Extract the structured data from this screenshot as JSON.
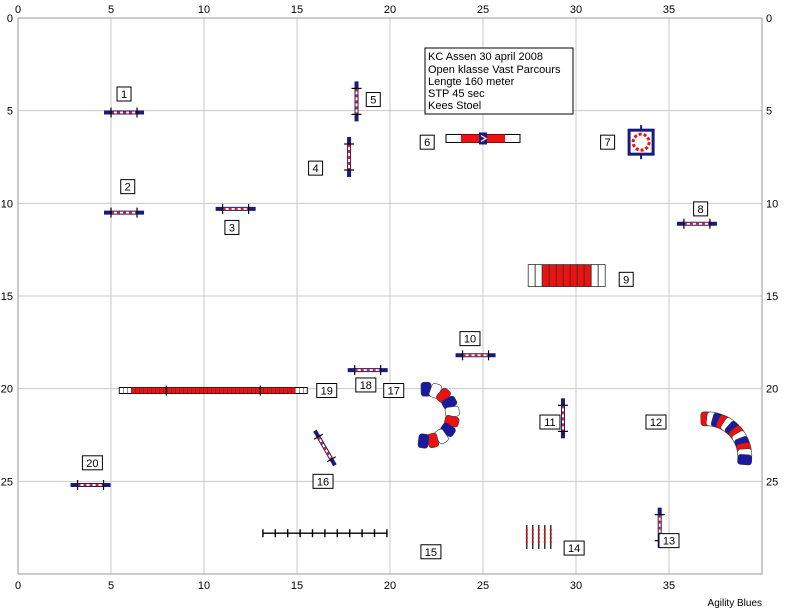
{
  "course": {
    "info_lines": [
      "KC Assen 30 april 2008",
      "Open klasse Vast Parcours",
      "Lengte 160 meter",
      "STP 45 sec",
      "Kees Stoel"
    ],
    "footer": "Agility Blues"
  },
  "chart_data": {
    "type": "diagram",
    "x_range": [
      0,
      40
    ],
    "y_range": [
      0,
      30
    ],
    "x_ticks": [
      "0",
      "5",
      "10",
      "15",
      "20",
      "25",
      "30",
      "35"
    ],
    "y_ticks": [
      "0",
      "5",
      "10",
      "15",
      "20",
      "25"
    ],
    "grid": true,
    "obstacles": [
      {
        "number": "1",
        "type": "jump",
        "x": 5.7,
        "y": 5.1,
        "angle": 0
      },
      {
        "number": "2",
        "type": "jump",
        "x": 5.7,
        "y": 10.5,
        "angle": 0
      },
      {
        "number": "3",
        "type": "jump",
        "x": 11.7,
        "y": 10.3,
        "angle": 0
      },
      {
        "number": "4",
        "type": "jump",
        "x": 17.8,
        "y": 7.5,
        "angle": 90
      },
      {
        "number": "5",
        "type": "jump",
        "x": 18.2,
        "y": 4.5,
        "angle": 90
      },
      {
        "number": "6",
        "type": "long jump",
        "x": 25.0,
        "y": 6.5,
        "angle": 0
      },
      {
        "number": "7",
        "type": "tyre",
        "x": 33.5,
        "y": 6.7,
        "angle": 0
      },
      {
        "number": "8",
        "type": "jump",
        "x": 36.5,
        "y": 11.1,
        "angle": 0
      },
      {
        "number": "9",
        "type": "tunnel",
        "x": 29.5,
        "y": 13.9,
        "angle": 0
      },
      {
        "number": "10",
        "type": "jump",
        "x": 24.6,
        "y": 18.2,
        "angle": 0
      },
      {
        "number": "11",
        "type": "jump",
        "x": 29.3,
        "y": 21.6,
        "angle": 90
      },
      {
        "number": "12",
        "type": "tunnel",
        "x": 38.0,
        "y": 22.6,
        "angle": 0
      },
      {
        "number": "13",
        "type": "jump",
        "x": 34.5,
        "y": 27.5,
        "angle": 90
      },
      {
        "number": "14",
        "type": "weave poles",
        "x": 28.0,
        "y": 28.0,
        "angle": 0
      },
      {
        "number": "15",
        "type": "weave poles",
        "x": 16.5,
        "y": 27.8,
        "angle": 0
      },
      {
        "number": "16",
        "type": "jump",
        "x": 16.5,
        "y": 23.2,
        "angle": 60
      },
      {
        "number": "17",
        "type": "tunnel",
        "x": 22.5,
        "y": 21.0,
        "angle": 0
      },
      {
        "number": "18",
        "type": "jump",
        "x": 18.8,
        "y": 19.0,
        "angle": 0
      },
      {
        "number": "19",
        "type": "dog walk",
        "x": 10.5,
        "y": 20.1,
        "angle": 0
      },
      {
        "number": "20",
        "type": "jump",
        "x": 3.9,
        "y": 25.2,
        "angle": 0
      }
    ],
    "labels": [
      {
        "text": "1",
        "x": 5.7,
        "y": 4.1
      },
      {
        "text": "2",
        "x": 5.9,
        "y": 9.1
      },
      {
        "text": "3",
        "x": 11.5,
        "y": 11.3
      },
      {
        "text": "4",
        "x": 16.0,
        "y": 8.1
      },
      {
        "text": "5",
        "x": 19.1,
        "y": 4.4
      },
      {
        "text": "6",
        "x": 22.0,
        "y": 6.7
      },
      {
        "text": "7",
        "x": 31.7,
        "y": 6.7
      },
      {
        "text": "8",
        "x": 36.7,
        "y": 10.3
      },
      {
        "text": "9",
        "x": 32.7,
        "y": 14.1
      },
      {
        "text": "10",
        "x": 24.3,
        "y": 17.3
      },
      {
        "text": "11",
        "x": 28.6,
        "y": 21.8
      },
      {
        "text": "12",
        "x": 34.3,
        "y": 21.8
      },
      {
        "text": "13",
        "x": 35.0,
        "y": 28.2
      },
      {
        "text": "14",
        "x": 29.9,
        "y": 28.6
      },
      {
        "text": "15",
        "x": 22.2,
        "y": 28.8
      },
      {
        "text": "16",
        "x": 16.4,
        "y": 25.0
      },
      {
        "text": "17",
        "x": 20.2,
        "y": 20.1
      },
      {
        "text": "18",
        "x": 18.7,
        "y": 19.8
      },
      {
        "text": "19",
        "x": 16.6,
        "y": 20.1
      },
      {
        "text": "20",
        "x": 4.0,
        "y": 24.0
      }
    ]
  },
  "colors": {
    "red": "#ee1111",
    "blue": "#1a1a7e",
    "grid": "#c8c8c8"
  }
}
